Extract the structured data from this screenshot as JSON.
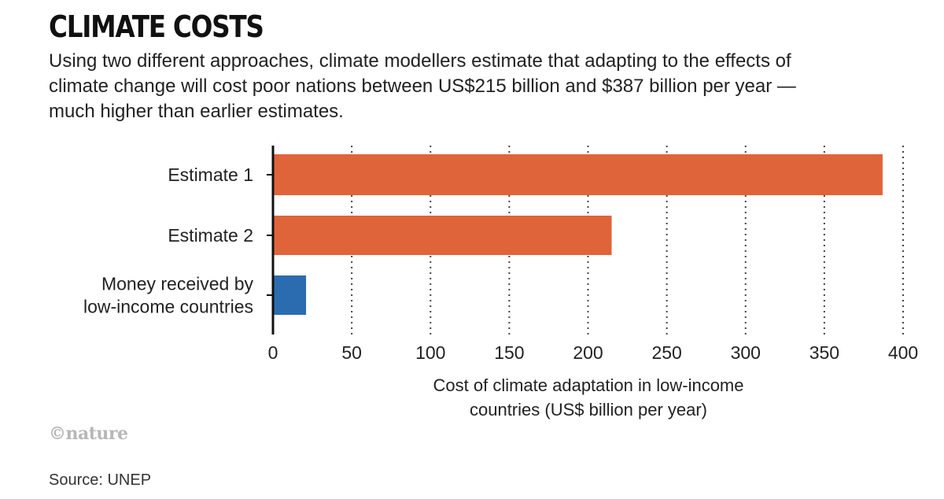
{
  "title": "CLIMATE COSTS",
  "subtitle": "Using two different approaches, climate modellers estimate that adapting to the effects of climate change will cost poor nations between US$215 billion and $387 billion per year — much higher than earlier estimates.",
  "credit": "©nature",
  "source": "Source: UNEP",
  "chart_data": {
    "type": "bar",
    "orientation": "horizontal",
    "categories": [
      "Estimate 1",
      "Estimate 2",
      "Money received by low-income countries"
    ],
    "values": [
      387,
      215,
      21
    ],
    "bar_colors": [
      "#e0643a",
      "#e0643a",
      "#2b6cb0"
    ],
    "xlabel": "Cost of climate adaptation in low-income countries (US$ billion per year)",
    "xlim": [
      0,
      400
    ],
    "xticks": [
      0,
      50,
      100,
      150,
      200,
      250,
      300,
      350,
      400
    ],
    "grid": "vertical dotted"
  }
}
